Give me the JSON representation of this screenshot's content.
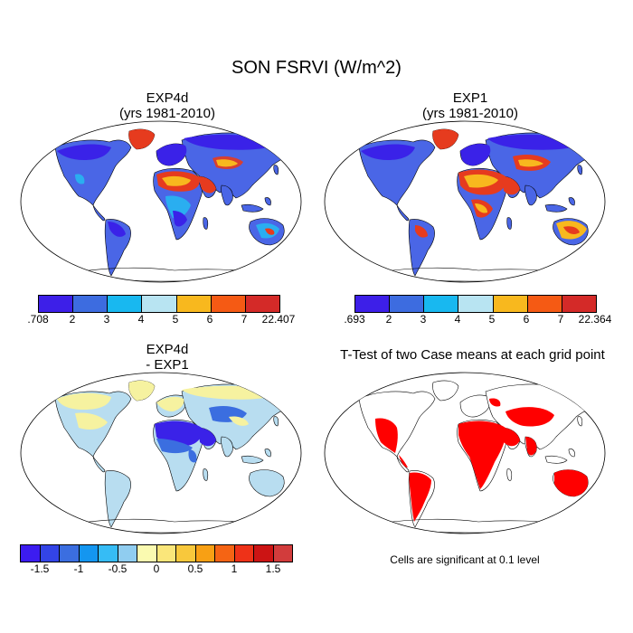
{
  "title": "SON FSRVI (W/m^2)",
  "panels": [
    {
      "id": "exp4d",
      "title_line1": "EXP4d",
      "title_line2": "(yrs 1981-2010)"
    },
    {
      "id": "exp1",
      "title_line1": "EXP1",
      "title_line2": "(yrs 1981-2010)"
    },
    {
      "id": "diff",
      "title_line1": "EXP4d",
      "title_line2": "- EXP1"
    },
    {
      "id": "ttest",
      "title_line1": "T-Test of two Case means at each grid point",
      "title_line2": ""
    }
  ],
  "colorbars": {
    "exp4d": {
      "colors": [
        "#3d1fe8",
        "#3d6ce0",
        "#18b8f0",
        "#b8e4f2",
        "#f8b81e",
        "#f55a14",
        "#d42a28"
      ],
      "labels": [
        ".708",
        "2",
        "3",
        "4",
        "5",
        "6",
        "7",
        "22.407"
      ]
    },
    "exp1": {
      "colors": [
        "#3d1fe8",
        "#3d6ce0",
        "#18b8f0",
        "#b8e4f2",
        "#f8b81e",
        "#f55a14",
        "#d42a28"
      ],
      "labels": [
        ".693",
        "2",
        "3",
        "4",
        "5",
        "6",
        "7",
        "22.364"
      ]
    },
    "diff": {
      "colors": [
        "#3c1cf0",
        "#3344e6",
        "#3b6ee0",
        "#1496f0",
        "#36bcf5",
        "#90cdf0",
        "#fafab0",
        "#fae67a",
        "#f8c83c",
        "#f8a014",
        "#f56414",
        "#ee3218",
        "#cc1414",
        "#d23c3c"
      ],
      "labels": [
        "-1.5",
        "-1",
        "-0.5",
        "0",
        "0.5",
        "1",
        "1.5"
      ]
    }
  },
  "map_colors": {
    "background_blue": "#4a66e6",
    "deep_blue": "#3a22e8",
    "cyan": "#2aaef0",
    "light_blue": "#b8e4f2",
    "orange": "#f8b81e",
    "red": "#e63b1e",
    "dark_red": "#c82a28",
    "diff_light": "#b8ddf0",
    "diff_yellow": "#f6f2a0",
    "significant": "#ff0000"
  },
  "ttest_note": "Cells are significant at 0.1 level"
}
